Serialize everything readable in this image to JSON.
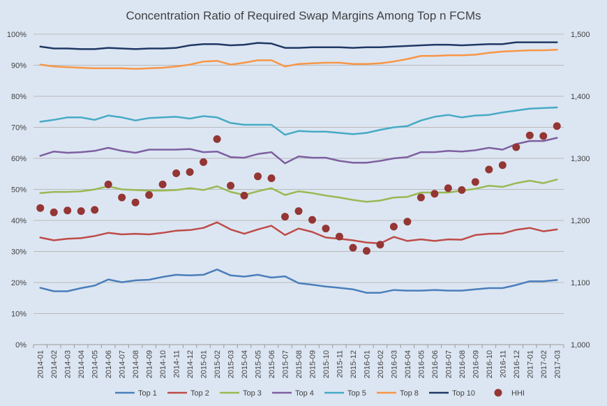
{
  "chart_data": {
    "type": "line",
    "title": "Concentration Ratio of Required Swap Margins Among Top n FCMs",
    "xlabel": "",
    "ylabel": "",
    "y2label": "",
    "ylim": [
      0,
      100
    ],
    "y2lim": [
      1000,
      1500
    ],
    "y_ticks": [
      "0%",
      "10%",
      "20%",
      "30%",
      "40%",
      "50%",
      "60%",
      "70%",
      "80%",
      "90%",
      "100%"
    ],
    "y2_ticks": [
      "1,000",
      "1,100",
      "1,200",
      "1,300",
      "1,400",
      "1,500"
    ],
    "grid": true,
    "legend_position": "bottom",
    "categories": [
      "2014-01",
      "2014-02",
      "2014-03",
      "2014-04",
      "2014-05",
      "2014-06",
      "2014-07",
      "2014-08",
      "2014-09",
      "2014-10",
      "2014-11",
      "2014-12",
      "2015-01",
      "2015-02",
      "2015-03",
      "2015-04",
      "2015-05",
      "2015-06",
      "2015-07",
      "2015-08",
      "2015-09",
      "2015-10",
      "2015-11",
      "2015-12",
      "2016-01",
      "2016-02",
      "2016-03",
      "2016-04",
      "2016-05",
      "2016-06",
      "2016-07",
      "2016-08",
      "2016-09",
      "2016-10",
      "2016-11",
      "2016-12",
      "2017-01",
      "2017-02",
      "2017-03"
    ],
    "series": [
      {
        "name": "Top 1",
        "color": "#4a7ebb",
        "values": [
          18.3,
          17.2,
          17.2,
          18.2,
          19.0,
          21.0,
          20.1,
          20.7,
          20.9,
          21.8,
          22.5,
          22.3,
          22.5,
          24.2,
          22.3,
          21.9,
          22.5,
          21.6,
          22.0,
          19.8,
          19.3,
          18.7,
          18.3,
          17.8,
          16.7,
          16.7,
          17.6,
          17.4,
          17.4,
          17.6,
          17.4,
          17.4,
          17.8,
          18.2,
          18.2,
          19.2,
          20.4,
          20.4,
          20.8
        ]
      },
      {
        "name": "Top 2",
        "color": "#be4b48",
        "values": [
          34.5,
          33.6,
          34.1,
          34.3,
          35.0,
          36.0,
          35.5,
          35.7,
          35.5,
          36.0,
          36.7,
          36.9,
          37.6,
          39.4,
          37.1,
          35.7,
          37.1,
          38.3,
          35.3,
          37.4,
          36.3,
          34.5,
          34.1,
          33.6,
          32.9,
          32.6,
          34.7,
          33.4,
          33.9,
          33.4,
          33.9,
          33.8,
          35.3,
          35.7,
          35.8,
          37.0,
          37.6,
          36.5,
          37.1
        ]
      },
      {
        "name": "Top 3",
        "color": "#98b954",
        "values": [
          48.8,
          49.2,
          49.2,
          49.4,
          50.0,
          51.0,
          50.0,
          49.8,
          49.6,
          49.6,
          49.8,
          50.4,
          49.8,
          51.0,
          49.2,
          48.2,
          49.4,
          50.4,
          48.2,
          49.4,
          48.8,
          48.0,
          47.4,
          46.6,
          46.0,
          46.4,
          47.4,
          47.6,
          49.0,
          49.0,
          49.0,
          49.6,
          50.2,
          51.2,
          50.8,
          52.0,
          52.8,
          52.0,
          53.2
        ]
      },
      {
        "name": "Top 4",
        "color": "#7d60a0",
        "values": [
          60.8,
          62.2,
          61.8,
          62.0,
          62.4,
          63.4,
          62.4,
          61.8,
          62.8,
          62.8,
          62.8,
          63.0,
          62.0,
          62.2,
          60.4,
          60.2,
          61.4,
          62.0,
          58.4,
          60.6,
          60.2,
          60.2,
          59.2,
          58.6,
          58.6,
          59.2,
          60.0,
          60.4,
          62.0,
          62.0,
          62.4,
          62.2,
          62.6,
          63.4,
          62.8,
          64.6,
          65.6,
          65.6,
          66.6
        ]
      },
      {
        "name": "Top 5",
        "color": "#46aac5",
        "values": [
          71.8,
          72.4,
          73.2,
          73.2,
          72.4,
          73.8,
          73.2,
          72.2,
          73.0,
          73.2,
          73.4,
          72.8,
          73.6,
          73.2,
          71.4,
          70.8,
          70.8,
          70.8,
          67.6,
          68.8,
          68.6,
          68.6,
          68.2,
          67.8,
          68.2,
          69.2,
          70.0,
          70.4,
          72.2,
          73.4,
          74.0,
          73.2,
          73.8,
          74.0,
          74.8,
          75.4,
          76.0,
          76.2,
          76.4
        ]
      },
      {
        "name": "Top 8",
        "color": "#f79646",
        "values": [
          90.2,
          89.6,
          89.4,
          89.2,
          89.0,
          89.0,
          89.0,
          88.8,
          89.0,
          89.2,
          89.6,
          90.2,
          91.2,
          91.4,
          90.2,
          90.8,
          91.6,
          91.6,
          89.6,
          90.4,
          90.6,
          90.8,
          90.8,
          90.4,
          90.4,
          90.6,
          91.2,
          92.0,
          93.0,
          93.0,
          93.2,
          93.2,
          93.4,
          94.0,
          94.4,
          94.6,
          94.8,
          94.8,
          95.0
        ]
      },
      {
        "name": "Top 10",
        "color": "#1f3864",
        "values": [
          96.0,
          95.4,
          95.4,
          95.2,
          95.2,
          95.6,
          95.4,
          95.2,
          95.4,
          95.4,
          95.6,
          96.4,
          96.8,
          96.8,
          96.4,
          96.6,
          97.2,
          97.0,
          95.6,
          95.6,
          95.8,
          95.8,
          95.8,
          95.6,
          95.8,
          95.8,
          96.0,
          96.2,
          96.4,
          96.6,
          96.6,
          96.4,
          96.6,
          96.8,
          96.8,
          97.4,
          97.4,
          97.4,
          97.4
        ]
      }
    ],
    "hhi": {
      "name": "HHI",
      "color": "#943634",
      "values": [
        1220,
        1213,
        1216,
        1215,
        1217,
        1258,
        1237,
        1229,
        1241,
        1258,
        1276,
        1278,
        1294,
        1331,
        1256,
        1240,
        1271,
        1268,
        1206,
        1215,
        1201,
        1187,
        1174,
        1156,
        1151,
        1161,
        1190,
        1198,
        1237,
        1243,
        1252,
        1249,
        1262,
        1282,
        1289,
        1318,
        1337,
        1336,
        1352
      ]
    }
  }
}
